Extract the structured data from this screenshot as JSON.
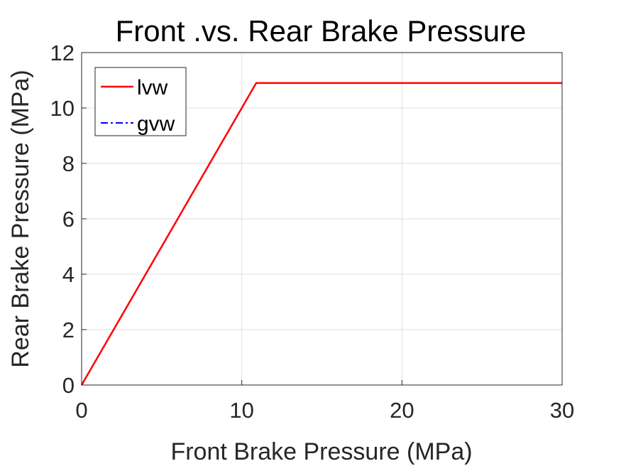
{
  "chart_data": {
    "type": "line",
    "title": "Front .vs. Rear Brake Pressure",
    "xlabel": "Front Brake Pressure (MPa)",
    "ylabel": "Rear Brake Pressure (MPa)",
    "xlim": [
      0,
      30
    ],
    "ylim": [
      0,
      12
    ],
    "xticks": [
      0,
      10,
      20,
      30
    ],
    "yticks": [
      0,
      2,
      4,
      6,
      8,
      10,
      12
    ],
    "grid": true,
    "legend_position": "top-left",
    "series": [
      {
        "name": "lvw",
        "color": "#ff0000",
        "line_style": "solid",
        "x": [
          0,
          10.9,
          30
        ],
        "y": [
          0,
          10.9,
          10.9
        ]
      },
      {
        "name": "gvw",
        "color": "#0000ff",
        "line_style": "dash-dot",
        "x": [
          0,
          0.1
        ],
        "y": [
          0,
          0.1
        ]
      }
    ]
  }
}
